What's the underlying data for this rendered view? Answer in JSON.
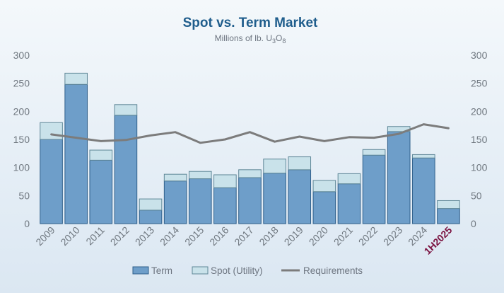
{
  "chart_data": {
    "type": "bar",
    "title": "Spot vs. Term Market",
    "subtitle": {
      "prefix": "Millions of lb. U",
      "sub1": "3",
      "mid": "O",
      "sub2": "8"
    },
    "categories": [
      "2009",
      "2010",
      "2011",
      "2012",
      "2013",
      "2014",
      "2015",
      "2016",
      "2017",
      "2018",
      "2019",
      "2020",
      "2021",
      "2022",
      "2023",
      "2024",
      "1H2025"
    ],
    "highlight_category": "1H2025",
    "stacked": true,
    "series": [
      {
        "name": "Term",
        "values": [
          150,
          248,
          113,
          193,
          24,
          76,
          80,
          64,
          82,
          90,
          96,
          57,
          71,
          122,
          164,
          117,
          27
        ]
      },
      {
        "name": "Spot (Utility)",
        "values": [
          30,
          20,
          18,
          19,
          20,
          12,
          13,
          23,
          14,
          25,
          23,
          20,
          18,
          10,
          9,
          6,
          14
        ]
      }
    ],
    "line_series": {
      "name": "Requirements",
      "values": [
        159,
        153,
        147,
        149,
        157,
        163,
        144,
        150,
        163,
        146,
        155,
        147,
        154,
        153,
        160,
        177,
        170
      ]
    },
    "y_ticks": [
      0,
      50,
      100,
      150,
      200,
      250,
      300
    ],
    "ylim": [
      0,
      300
    ],
    "xlabel": "",
    "ylabel": "",
    "legend": [
      "Term",
      "Spot (Utility)",
      "Requirements"
    ],
    "legend_position": "bottom",
    "colors": {
      "term": "#6e9ec9",
      "spot": "#c9e2ea",
      "requirements": "#7c7c7c",
      "title": "#1f5d8c",
      "highlight": "#7a1240"
    }
  }
}
